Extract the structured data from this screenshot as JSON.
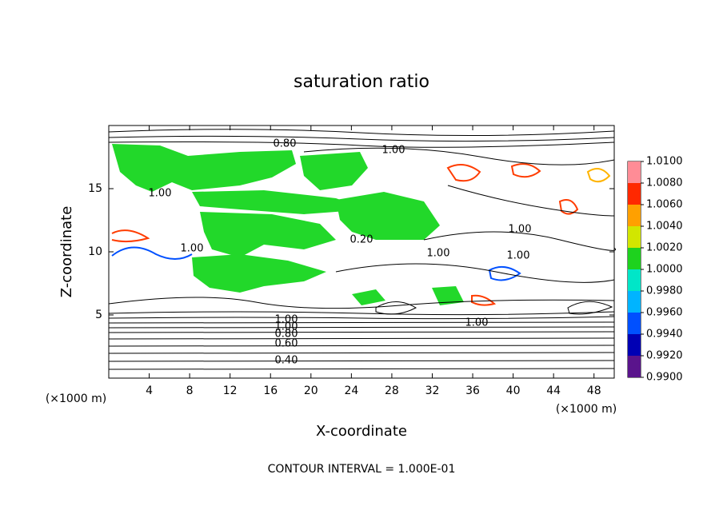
{
  "chart_data": {
    "type": "contour",
    "title": "saturation ratio",
    "x_label": "X-coordinate",
    "y_label": "Z-coordinate",
    "x_unit": "(×1000 m)",
    "y_unit": "(×1000 m)",
    "xlim": [
      0,
      50
    ],
    "ylim": [
      0,
      20
    ],
    "xticks": [
      4,
      8,
      12,
      16,
      20,
      24,
      28,
      32,
      36,
      40,
      44,
      48
    ],
    "yticks": [
      5,
      10,
      15
    ],
    "contour_labels": [
      "0.80",
      "1.00",
      "1.00",
      "1.00",
      "1.00",
      "1.00",
      "1.00",
      "1.00",
      "1.00",
      "1.00",
      "0.80",
      "0.60",
      "0.40",
      "0.20"
    ],
    "footer": "CONTOUR INTERVAL = 1.000E-01",
    "colorbar": {
      "lim": [
        0.99,
        1.01
      ],
      "ticks": [
        {
          "value": 0.99,
          "label": "0.9900"
        },
        {
          "value": 0.992,
          "label": "0.9920"
        },
        {
          "value": 0.994,
          "label": "0.9940"
        },
        {
          "value": 0.996,
          "label": "0.9960"
        },
        {
          "value": 0.998,
          "label": "0.9980"
        },
        {
          "value": 1.0,
          "label": "1.0000"
        },
        {
          "value": 1.002,
          "label": "1.0020"
        },
        {
          "value": 1.004,
          "label": "1.0040"
        },
        {
          "value": 1.006,
          "label": "1.0060"
        },
        {
          "value": 1.008,
          "label": "1.0080"
        },
        {
          "value": 1.01,
          "label": "1.0100"
        }
      ],
      "colors": [
        "#5a148c",
        "#0000b4",
        "#0050ff",
        "#00b4ff",
        "#00e6c8",
        "#1ed21e",
        "#d2e600",
        "#ffa000",
        "#ff2800",
        "#ff8c96"
      ]
    }
  }
}
